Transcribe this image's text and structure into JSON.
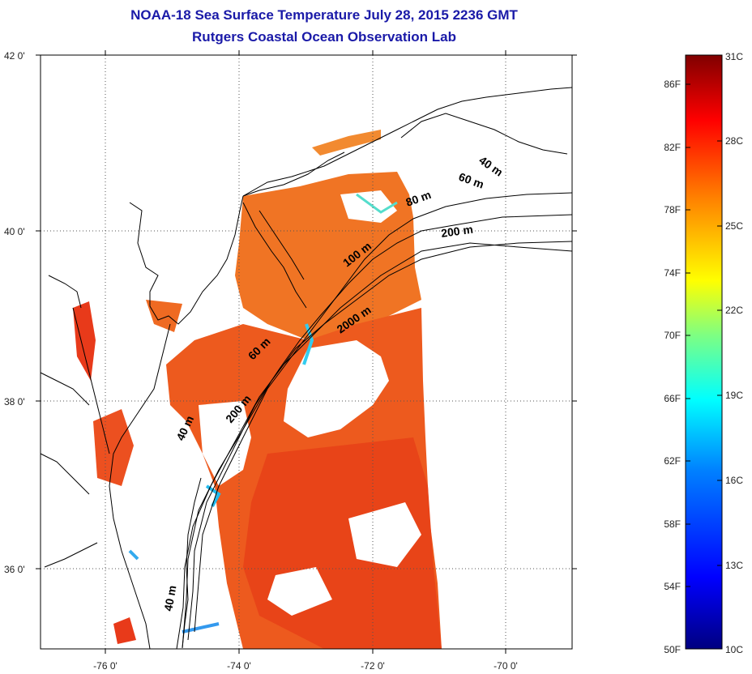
{
  "header": {
    "title": "NOAA-18 Sea Surface Temperature July 28, 2015 2236 GMT",
    "subtitle": "Rutgers Coastal Ocean Observation Lab"
  },
  "map": {
    "lat_labels": [
      "42 0'",
      "40 0'",
      "38 0'",
      "36 0'"
    ],
    "lon_labels": [
      "-76 0'",
      "-74 0'",
      "-72 0'",
      "-70 0'"
    ],
    "depth_labels": [
      "40 m",
      "60 m",
      "80 m",
      "200 m",
      "100 m",
      "2000 m",
      "60 m",
      "200 m",
      "40 m",
      "40 m"
    ]
  },
  "colorbar": {
    "fahrenheit": [
      "86F",
      "82F",
      "78F",
      "74F",
      "70F",
      "66F",
      "62F",
      "58F",
      "54F",
      "50F"
    ],
    "celsius": [
      "31C",
      "28C",
      "25C",
      "22C",
      "19C",
      "16C",
      "13C",
      "10C"
    ],
    "colors": [
      "#800000",
      "#ff0000",
      "#ff8000",
      "#ffff00",
      "#80ff80",
      "#00ffff",
      "#0080ff",
      "#0000ff",
      "#000080"
    ]
  }
}
